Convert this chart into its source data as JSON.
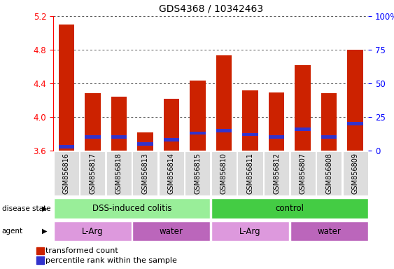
{
  "title": "GDS4368 / 10342463",
  "samples": [
    "GSM856816",
    "GSM856817",
    "GSM856818",
    "GSM856813",
    "GSM856814",
    "GSM856815",
    "GSM856810",
    "GSM856811",
    "GSM856812",
    "GSM856807",
    "GSM856808",
    "GSM856809"
  ],
  "transformed_counts": [
    5.1,
    4.28,
    4.24,
    3.82,
    4.22,
    4.43,
    4.73,
    4.32,
    4.29,
    4.62,
    4.28,
    4.8
  ],
  "percentile_ranks_pct": [
    3,
    10,
    10,
    5,
    8,
    13,
    15,
    12,
    10,
    16,
    10,
    20
  ],
  "ylim_left": [
    3.6,
    5.2
  ],
  "ylim_right": [
    0,
    100
  ],
  "yticks_left": [
    3.6,
    4.0,
    4.4,
    4.8,
    5.2
  ],
  "yticks_right": [
    0,
    25,
    50,
    75,
    100
  ],
  "bar_base": 3.6,
  "bar_color": "#cc2200",
  "percentile_color": "#3333cc",
  "bar_width": 0.6,
  "disease_state_groups": [
    {
      "label": "DSS-induced colitis",
      "start": 0,
      "end": 6,
      "color": "#99ee99"
    },
    {
      "label": "control",
      "start": 6,
      "end": 12,
      "color": "#44cc44"
    }
  ],
  "agent_groups": [
    {
      "label": "L-Arg",
      "start": 0,
      "end": 3,
      "color": "#dd99dd"
    },
    {
      "label": "water",
      "start": 3,
      "end": 6,
      "color": "#bb66bb"
    },
    {
      "label": "L-Arg",
      "start": 6,
      "end": 9,
      "color": "#dd99dd"
    },
    {
      "label": "water",
      "start": 9,
      "end": 12,
      "color": "#bb66bb"
    }
  ],
  "legend_items": [
    {
      "label": "transformed count",
      "color": "#cc2200"
    },
    {
      "label": "percentile rank within the sample",
      "color": "#3333cc"
    }
  ],
  "grid_color": "#555555",
  "title_fontsize": 10,
  "tick_fontsize": 8.5,
  "annot_fontsize": 8.5,
  "legend_fontsize": 8
}
